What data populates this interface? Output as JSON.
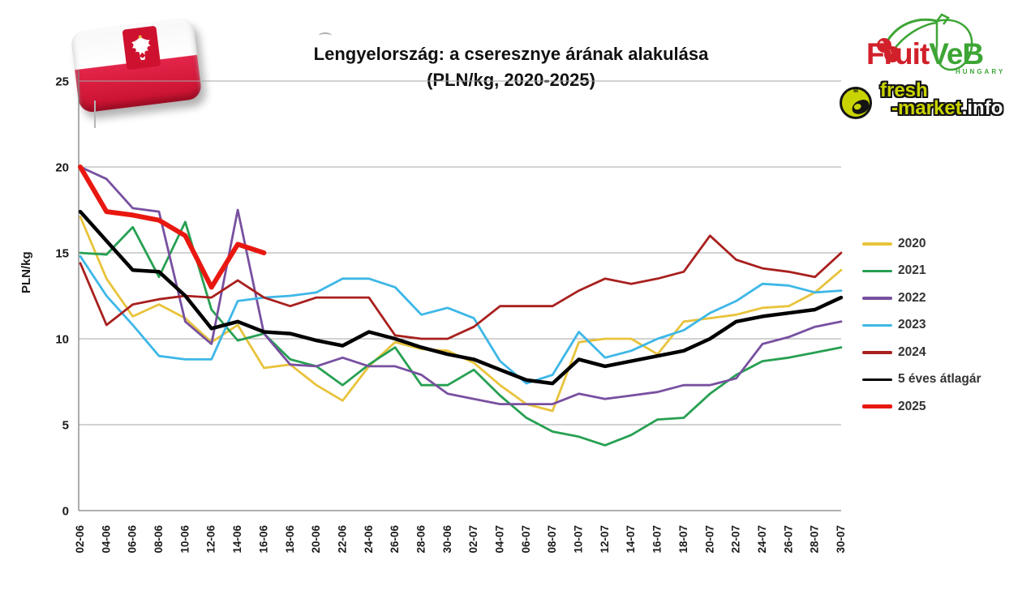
{
  "header": {
    "title_line1": "Lengyelország: a cseresznye árának alakulása",
    "title_line2": "(PLN/kg, 2020-2025)"
  },
  "y_axis_title": "PLN/kg",
  "chart_data": {
    "type": "line",
    "title": "Lengyelország: a cseresznye árának alakulása (PLN/kg, 2020-2025)",
    "xlabel": "",
    "ylabel": "PLN/kg",
    "ylim": [
      0,
      25
    ],
    "yticks": [
      0,
      5,
      10,
      15,
      20,
      25
    ],
    "grid": true,
    "legend_position": "right",
    "categories": [
      "02-06",
      "04-06",
      "06-06",
      "08-06",
      "10-06",
      "12-06",
      "14-06",
      "16-06",
      "18-06",
      "20-06",
      "22-06",
      "24-06",
      "26-06",
      "28-06",
      "30-06",
      "02-07",
      "04-07",
      "06-07",
      "08-07",
      "10-07",
      "12-07",
      "14-07",
      "16-07",
      "18-07",
      "20-07",
      "22-07",
      "24-07",
      "26-07",
      "28-07",
      "30-07"
    ],
    "series": [
      {
        "name": "2020",
        "color": "#e8c33c",
        "width": 2.8,
        "values": [
          17.1,
          13.5,
          11.3,
          12.0,
          11.2,
          9.8,
          10.8,
          8.3,
          8.5,
          7.3,
          6.4,
          8.4,
          9.8,
          9.4,
          9.3,
          8.6,
          7.3,
          6.2,
          5.8,
          9.8,
          10.0,
          10.0,
          9.1,
          11.0,
          11.2,
          11.4,
          11.8,
          11.9,
          12.7,
          14.0
        ]
      },
      {
        "name": "2021",
        "color": "#27a052",
        "width": 2.8,
        "values": [
          15.0,
          14.9,
          16.5,
          13.6,
          16.8,
          11.7,
          9.9,
          10.3,
          8.8,
          8.4,
          7.3,
          8.5,
          9.5,
          7.3,
          7.3,
          8.2,
          6.7,
          5.4,
          4.6,
          4.3,
          3.8,
          4.4,
          5.3,
          5.4,
          6.8,
          7.9,
          8.7,
          8.9,
          9.2,
          9.5
        ]
      },
      {
        "name": "2022",
        "color": "#7850a0",
        "width": 2.8,
        "values": [
          20.0,
          19.3,
          17.6,
          17.4,
          11.0,
          9.7,
          17.5,
          10.3,
          8.5,
          8.4,
          8.9,
          8.4,
          8.4,
          7.9,
          6.8,
          6.5,
          6.2,
          6.2,
          6.2,
          6.8,
          6.5,
          6.7,
          6.9,
          7.3,
          7.3,
          7.7,
          9.7,
          10.1,
          10.7,
          11.0
        ]
      },
      {
        "name": "2023",
        "color": "#3eb7e7",
        "width": 2.8,
        "values": [
          14.8,
          12.5,
          10.8,
          9.0,
          8.8,
          8.8,
          12.2,
          12.4,
          12.5,
          12.7,
          13.5,
          13.5,
          13.0,
          11.4,
          11.8,
          11.2,
          8.7,
          7.4,
          7.9,
          10.4,
          8.9,
          9.3,
          10.0,
          10.5,
          11.5,
          12.2,
          13.2,
          13.1,
          12.7,
          12.8
        ]
      },
      {
        "name": "2024",
        "color": "#a8201e",
        "width": 2.8,
        "values": [
          14.4,
          10.8,
          12.0,
          12.3,
          12.5,
          12.4,
          13.4,
          12.4,
          11.9,
          12.4,
          12.4,
          12.4,
          10.2,
          10.0,
          10.0,
          10.7,
          11.9,
          11.9,
          11.9,
          12.8,
          13.5,
          13.2,
          13.5,
          13.9,
          16.0,
          14.6,
          14.1,
          13.9,
          13.6,
          15.0
        ]
      },
      {
        "name": "5 éves átlagár",
        "color": "#000000",
        "width": 4.5,
        "values": [
          17.4,
          15.7,
          14.0,
          13.9,
          12.5,
          10.6,
          11.0,
          10.4,
          10.3,
          9.9,
          9.6,
          10.4,
          10.0,
          9.5,
          9.1,
          8.8,
          8.2,
          7.6,
          7.4,
          8.8,
          8.4,
          8.7,
          9.0,
          9.3,
          10.0,
          11.0,
          11.3,
          11.5,
          11.7,
          12.4
        ]
      },
      {
        "name": "2025",
        "color": "#e81810",
        "width": 6,
        "values": [
          20.0,
          17.4,
          17.2,
          16.9,
          16.0,
          13.0,
          15.5,
          15.0
        ]
      }
    ]
  },
  "logos": {
    "fruitveb": {
      "word1": "Fruit",
      "word2": "VeB",
      "country": "HUNGARY",
      "red": "#d1202a",
      "green": "#3da535"
    },
    "freshmarket": {
      "line1": "fresh",
      "line2": "-market",
      "suffix": ".info",
      "accent": "#c9d300"
    }
  },
  "flag": {
    "country": "Poland",
    "red": "#c8102e",
    "white": "#ffffff"
  }
}
